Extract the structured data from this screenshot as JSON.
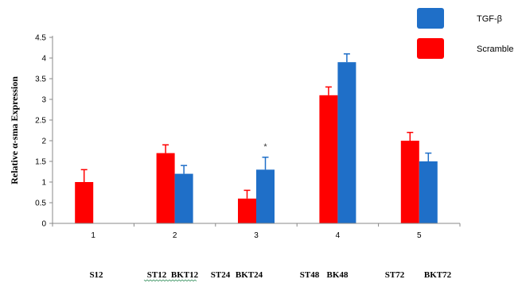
{
  "chart_data": {
    "type": "bar",
    "categories": [
      "1",
      "2",
      "3",
      "4",
      "5"
    ],
    "ylabel": "Relative α-sma Expression",
    "ylim": [
      0,
      4.5
    ],
    "yticks": [
      "0",
      "0.5",
      "1",
      "1.5",
      "2",
      "2.5",
      "3",
      "3.5",
      "4",
      "4.5"
    ],
    "series": [
      {
        "name": "Scramble",
        "color": "#ff0000",
        "values": [
          1.0,
          1.7,
          0.6,
          3.1,
          2.0
        ],
        "errors": [
          0.3,
          0.2,
          0.2,
          0.2,
          0.2
        ]
      },
      {
        "name": "TGF-β",
        "color": "#1f6fc8",
        "values": [
          null,
          1.2,
          1.3,
          3.9,
          1.5
        ],
        "errors": [
          null,
          0.2,
          0.3,
          0.2,
          0.2
        ]
      }
    ],
    "legend_position": "top-right",
    "annotations": [
      {
        "category": "3",
        "series": "TGF-β",
        "text": "*"
      }
    ],
    "group_labels": [
      "S12",
      "ST12",
      "BKT12",
      "ST24",
      "BKT24",
      "ST48",
      "BK48",
      "ST72",
      "BKT72"
    ]
  }
}
